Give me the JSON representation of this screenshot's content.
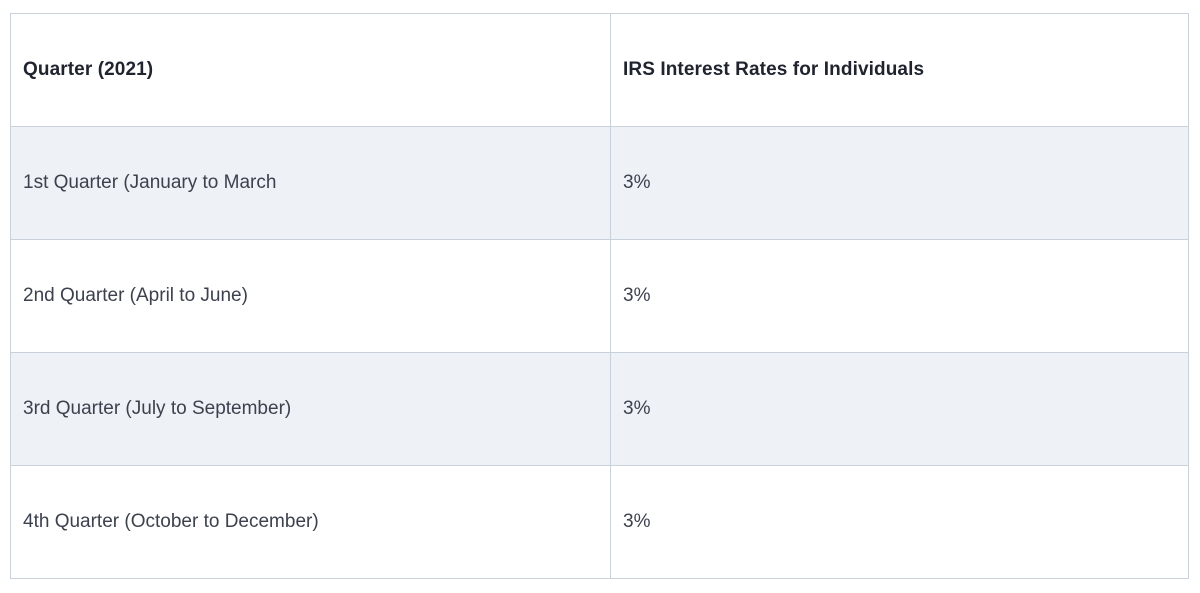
{
  "table": {
    "columns": [
      {
        "label": "Quarter (2021)"
      },
      {
        "label": "IRS Interest Rates for Individuals"
      }
    ],
    "rows": [
      {
        "quarter": "1st Quarter (January to March",
        "rate": "3%"
      },
      {
        "quarter": "2nd Quarter (April to June)",
        "rate": "3%"
      },
      {
        "quarter": "3rd Quarter (July to September)",
        "rate": "3%"
      },
      {
        "quarter": "4th Quarter (October to December)",
        "rate": "3%"
      }
    ],
    "colors": {
      "row_alt_background": "#eef1f6",
      "row_plain_background": "#ffffff",
      "border": "#c9d2db",
      "header_text": "#20242e",
      "body_text": "#3c414d"
    }
  }
}
